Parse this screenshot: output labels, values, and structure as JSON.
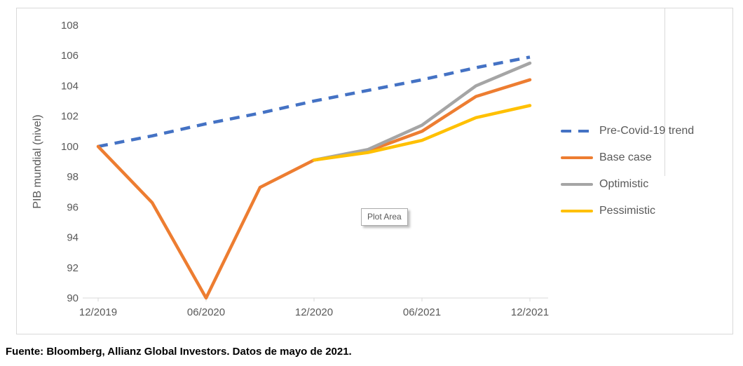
{
  "chart": {
    "plot_area_tooltip": "Plot Area",
    "border_color": "#D9D9D9",
    "axis_color": "#D9D9D9",
    "text_color": "#595959"
  },
  "chart_data": {
    "type": "line",
    "title": "",
    "xlabel": "",
    "ylabel": "PIB mundial (nivel)",
    "ylim": [
      90,
      108
    ],
    "y_tick_step": 2,
    "grid": false,
    "legend_position": "right",
    "x": [
      "12/2019",
      "03/2020",
      "06/2020",
      "09/2020",
      "12/2020",
      "03/2021",
      "06/2021",
      "09/2021",
      "12/2021"
    ],
    "x_axis_tick_labels": [
      "12/2019",
      "06/2020",
      "12/2020",
      "06/2021",
      "12/2021"
    ],
    "y_axis_tick_labels": [
      "90",
      "92",
      "94",
      "96",
      "98",
      "100",
      "102",
      "104",
      "106",
      "108"
    ],
    "series": [
      {
        "name": "Pre-Covid-19 trend",
        "color": "#4472C4",
        "dash": true,
        "values": [
          100,
          100.7,
          101.5,
          102.2,
          103,
          103.7,
          104.4,
          105.2,
          105.9
        ]
      },
      {
        "name": "Base case",
        "color": "#ED7D31",
        "dash": false,
        "values": [
          100,
          96.3,
          90,
          97.3,
          99.1,
          99.7,
          101,
          103.3,
          104.4
        ]
      },
      {
        "name": "Optimistic",
        "color": "#A5A5A5",
        "dash": false,
        "values": [
          null,
          null,
          null,
          null,
          99.1,
          99.8,
          101.4,
          104,
          105.5
        ]
      },
      {
        "name": "Pessimistic",
        "color": "#FFC000",
        "dash": false,
        "values": [
          null,
          null,
          null,
          null,
          99.1,
          99.6,
          100.4,
          101.9,
          102.7
        ]
      }
    ]
  },
  "footer": {
    "source": "Fuente: Bloomberg, Allianz Global Investors. Datos de mayo de 2021."
  }
}
